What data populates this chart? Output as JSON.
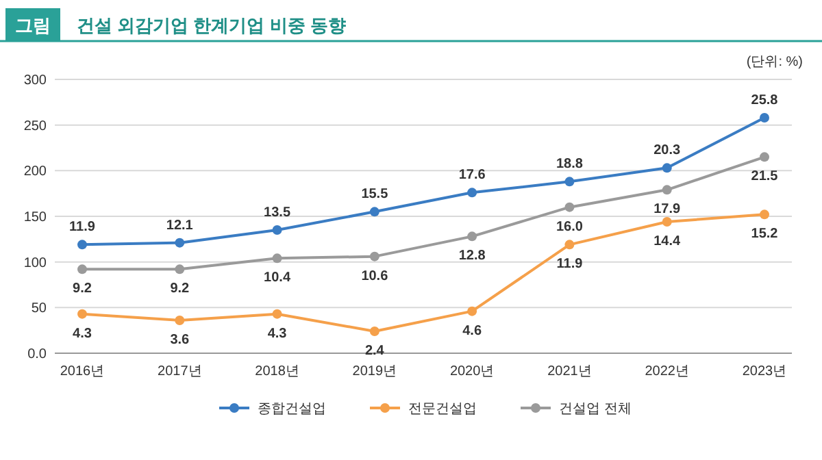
{
  "chart_data": {
    "type": "line",
    "title": "건설 외감기업 한계기업 비중 동향",
    "annotations": [
      "그림",
      "(단위: %)"
    ],
    "categories": [
      "2016년",
      "2017년",
      "2018년",
      "2019년",
      "2020년",
      "2021년",
      "2022년",
      "2023년"
    ],
    "series": [
      {
        "name": "종합건설업",
        "color": "#3a7cc3",
        "axis": "y2",
        "values": [
          11.9,
          12.1,
          13.5,
          15.5,
          17.6,
          18.8,
          20.3,
          25.8
        ]
      },
      {
        "name": "전문건설업",
        "color": "#f5a04a",
        "axis": "y2",
        "values": [
          4.3,
          3.6,
          4.3,
          2.4,
          4.6,
          11.9,
          14.4,
          15.2
        ]
      },
      {
        "name": "건설업 전체",
        "color": "#9a9a9a",
        "axis": "y2",
        "values": [
          9.2,
          9.2,
          10.4,
          10.6,
          12.8,
          16.0,
          17.9,
          21.5
        ],
        "value_labels": [
          "9.2",
          "9.2",
          "10.4",
          "10.6",
          "12.8",
          "16.0",
          "17.9",
          "21.5"
        ]
      }
    ],
    "ylim": [
      0,
      300
    ],
    "yticks": [
      {
        "value": 0,
        "label": "0.0"
      },
      50,
      100,
      150,
      200,
      250,
      300
    ],
    "y2lim": [
      0,
      30
    ],
    "grid": "y",
    "legend": "bottom",
    "marker": "circle",
    "line_style": "solid",
    "data_labels": true
  }
}
